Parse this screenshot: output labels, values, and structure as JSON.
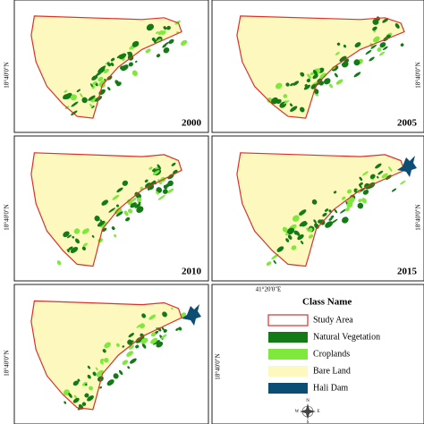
{
  "panels": [
    {
      "year": "2000",
      "lat_label": "18°40'0\"N",
      "side": "left"
    },
    {
      "year": "2005",
      "lat_label": "18°40'0\"N",
      "side": "right"
    },
    {
      "year": "2010",
      "lat_label": "18°40'0\"N",
      "side": "left"
    },
    {
      "year": "2015",
      "lat_label": "18°40'0\"N",
      "side": "right",
      "dam": true
    },
    {
      "lat_label": "18°40'0\"N",
      "side": "left",
      "dam": true
    }
  ],
  "lon_label": "41°20'0\"E",
  "legend_lat_label": "18°40'0\"N",
  "legend": {
    "title": "Class Name",
    "items": [
      {
        "label": "Study Area",
        "color": "#ffffff",
        "outline": "#d9322b"
      },
      {
        "label": "Natural Vegetation",
        "color": "#137a16"
      },
      {
        "label": "Croplands",
        "color": "#7fe83c"
      },
      {
        "label": "Bare Land",
        "color": "#fdf8bd"
      },
      {
        "label": "Hali Dam",
        "color": "#0b4d73"
      }
    ]
  },
  "compass": {
    "n": "N",
    "e": "E",
    "s": "S",
    "w": "W"
  }
}
